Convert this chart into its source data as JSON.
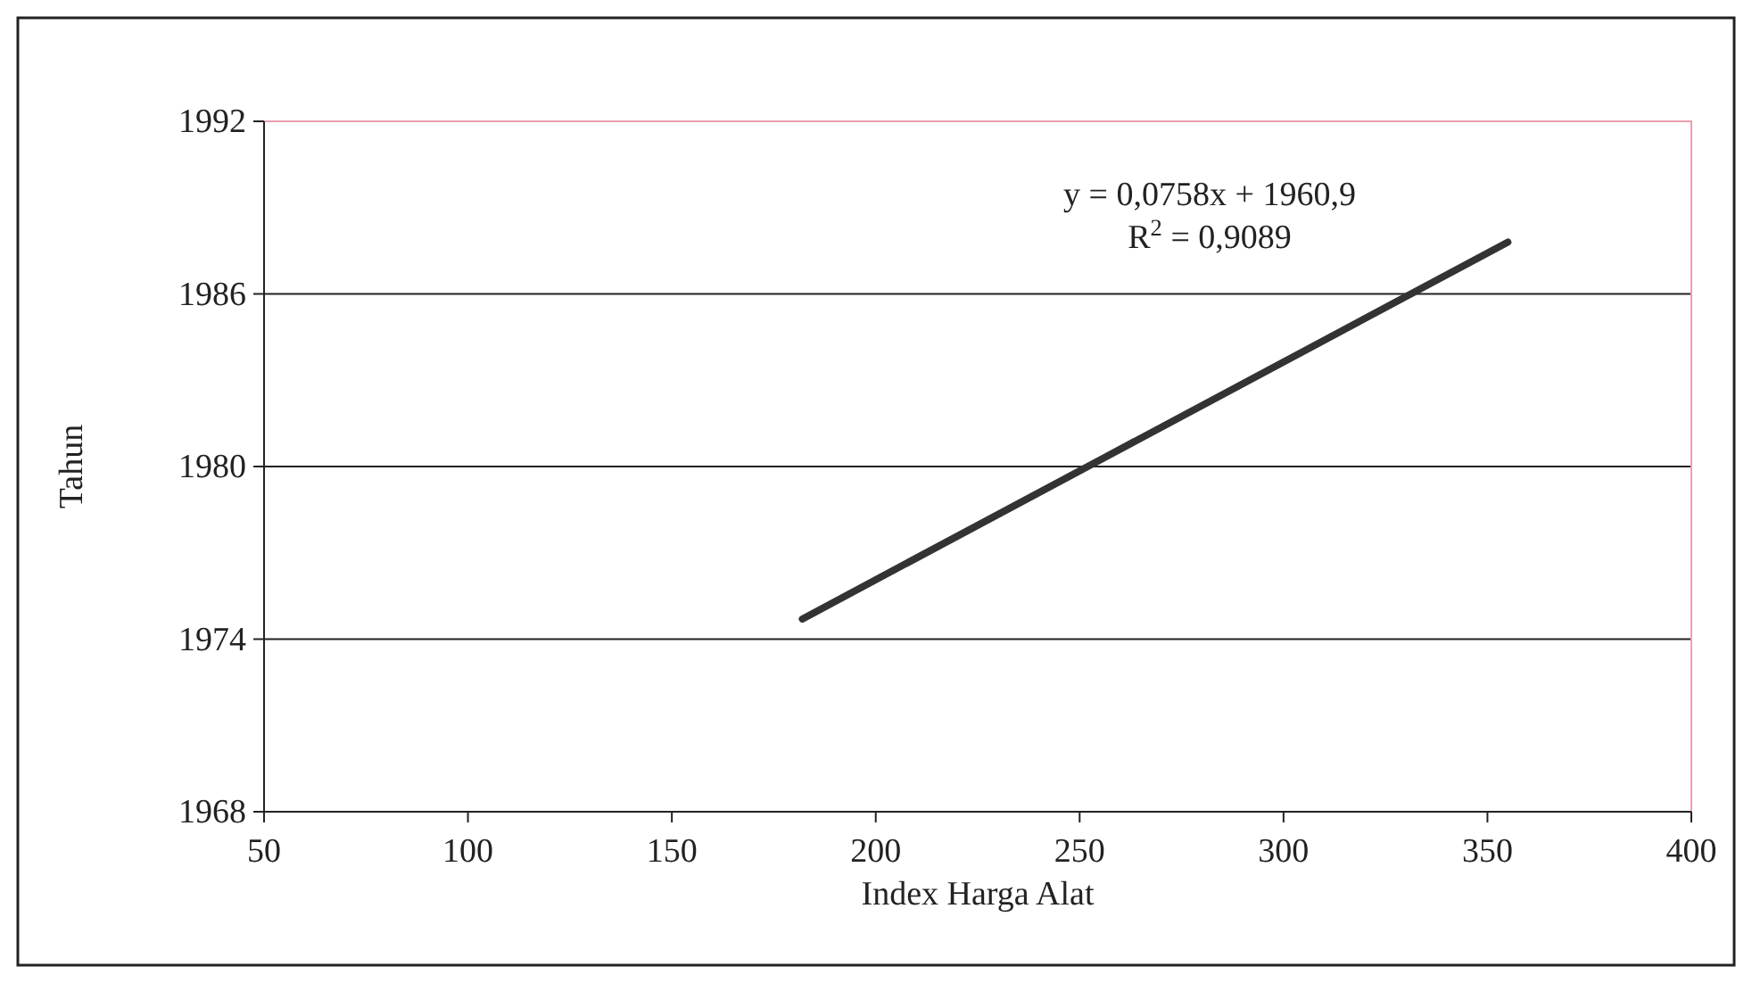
{
  "chart_data": {
    "type": "line",
    "xlabel": "Index Harga Alat",
    "ylabel": "Tahun",
    "x": [
      182,
      355
    ],
    "series": [
      {
        "color": "#333333",
        "values": [
          1974.7,
          1987.8
        ]
      }
    ],
    "xlim": [
      50,
      400
    ],
    "xticks": [
      50,
      100,
      150,
      200,
      250,
      300,
      350,
      400
    ],
    "ylim": [
      1968,
      1992
    ],
    "yticks": [
      1968,
      1974,
      1980,
      1986,
      1992
    ],
    "grid": "y",
    "annotations": [
      "y = 0,0758x + 1960,9",
      "R$^{2}$ = 0,9089"
    ]
  }
}
